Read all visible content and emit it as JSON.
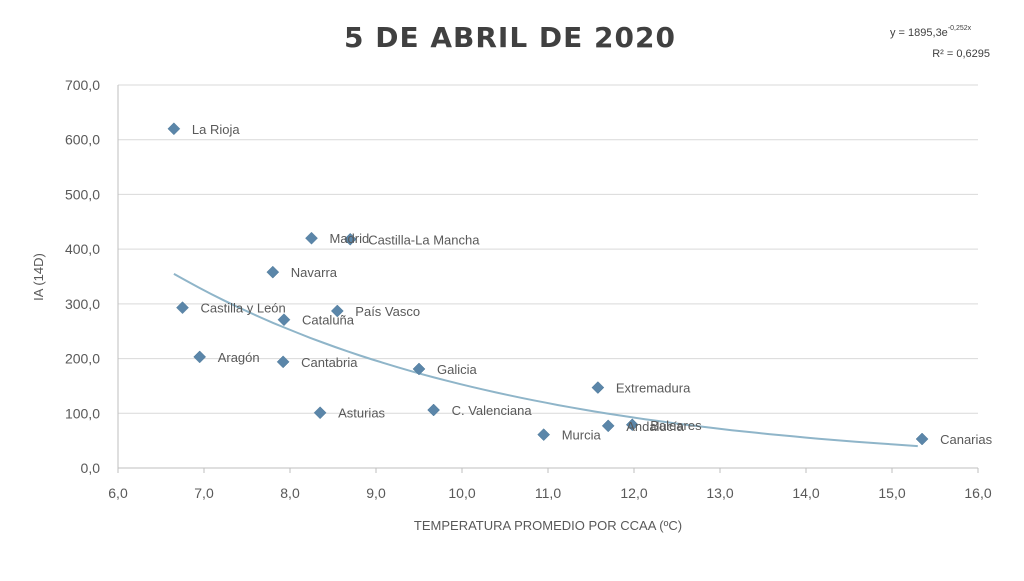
{
  "chart_data": {
    "type": "scatter",
    "title": "5 DE ABRIL DE 2020",
    "xlabel": "TEMPERATURA  PROMEDIO POR CCAA (ºC)",
    "ylabel": "IA (14D)",
    "xlim": [
      6.0,
      16.0
    ],
    "ylim": [
      0.0,
      700.0
    ],
    "x_ticks": [
      "6,0",
      "7,0",
      "8,0",
      "9,0",
      "10,0",
      "11,0",
      "12,0",
      "13,0",
      "14,0",
      "15,0",
      "16,0"
    ],
    "y_ticks": [
      "0,0",
      "100,0",
      "200,0",
      "300,0",
      "400,0",
      "500,0",
      "600,0",
      "700,0"
    ],
    "grid": true,
    "legend": "none",
    "trendline": {
      "type": "exponential",
      "equation_text": "y = 1895,3e",
      "equation_exponent": "-0,252x",
      "r2_text": "R² = 0,6295",
      "a": 1895.3,
      "b": -0.252,
      "x_range": [
        6.65,
        15.3
      ]
    },
    "points": [
      {
        "label": "La Rioja",
        "x": 6.65,
        "y": 620
      },
      {
        "label": "Madrid",
        "x": 8.25,
        "y": 420
      },
      {
        "label": "Castilla-La Mancha",
        "x": 8.7,
        "y": 418
      },
      {
        "label": "Navarra",
        "x": 7.8,
        "y": 358
      },
      {
        "label": "Castilla y León",
        "x": 6.75,
        "y": 293
      },
      {
        "label": "Cataluña",
        "x": 7.93,
        "y": 271
      },
      {
        "label": "País Vasco",
        "x": 8.55,
        "y": 287
      },
      {
        "label": "Aragón",
        "x": 6.95,
        "y": 203
      },
      {
        "label": "Cantabria",
        "x": 7.92,
        "y": 194
      },
      {
        "label": "Galicia",
        "x": 9.5,
        "y": 181
      },
      {
        "label": "Asturias",
        "x": 8.35,
        "y": 101
      },
      {
        "label": "C. Valenciana",
        "x": 9.67,
        "y": 106
      },
      {
        "label": "Extremadura",
        "x": 11.58,
        "y": 147
      },
      {
        "label": "Murcia",
        "x": 10.95,
        "y": 61
      },
      {
        "label": "Andalucía",
        "x": 11.7,
        "y": 77
      },
      {
        "label": "Baleares",
        "x": 11.98,
        "y": 79
      },
      {
        "label": "Canarias",
        "x": 15.35,
        "y": 53
      }
    ],
    "colors": {
      "marker": "#5b86a9",
      "trend": "#8fb5c9",
      "text": "#595959"
    }
  }
}
